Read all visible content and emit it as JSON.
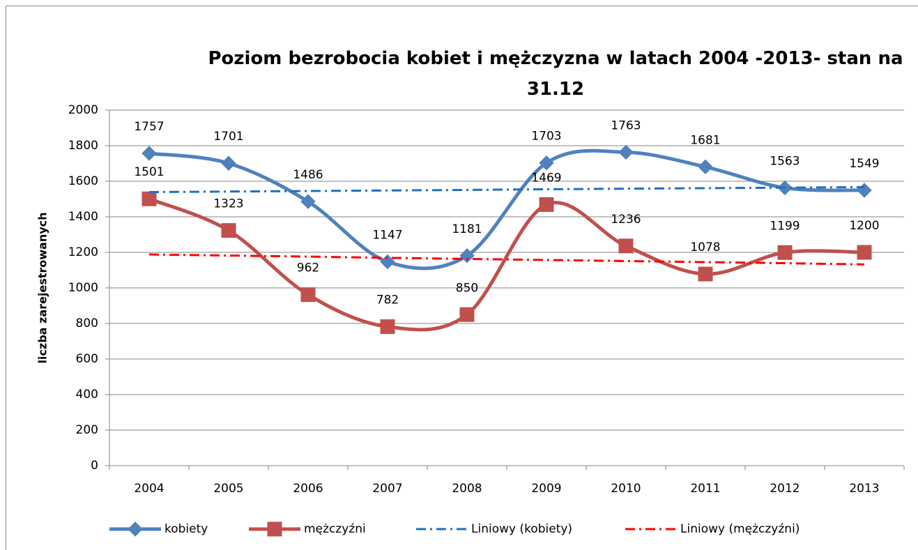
{
  "chart_data": {
    "type": "line",
    "title": "Poziom bezrobocia kobiet i mężczyzna w latach 2004 -2013- stan na 31.12",
    "y_label": "liczba zarejestrowanych",
    "categories": [
      "2004",
      "2005",
      "2006",
      "2007",
      "2008",
      "2009",
      "2010",
      "2011",
      "2012",
      "2013"
    ],
    "series": [
      {
        "name": "kobiety",
        "color": "#4f81bd",
        "marker": "diamond",
        "style": "solid",
        "smooth": true,
        "data_labels": true,
        "values": [
          1757,
          1701,
          1486,
          1147,
          1181,
          1703,
          1763,
          1681,
          1563,
          1549
        ]
      },
      {
        "name": "mężczyźni",
        "color": "#c0504d",
        "marker": "square",
        "style": "solid",
        "smooth": true,
        "data_labels": true,
        "values": [
          1501,
          1323,
          962,
          782,
          850,
          1469,
          1236,
          1078,
          1199,
          1200
        ]
      },
      {
        "name": "Liniowy (kobiety)",
        "color": "#1f6fc0",
        "style": "dashdot",
        "values": [
          1539,
          1542,
          1545,
          1548,
          1551,
          1555,
          1558,
          1561,
          1564,
          1567
        ]
      },
      {
        "name": "Liniowy (mężczyźni)",
        "color": "#ff0000",
        "style": "dashdot",
        "values": [
          1188,
          1182,
          1176,
          1169,
          1163,
          1157,
          1151,
          1145,
          1139,
          1132
        ]
      }
    ],
    "ylim": [
      0,
      2000
    ],
    "yticks": [
      0,
      200,
      400,
      600,
      800,
      1000,
      1200,
      1400,
      1600,
      1800,
      2000
    ],
    "grid": true,
    "legend": "bottom"
  }
}
